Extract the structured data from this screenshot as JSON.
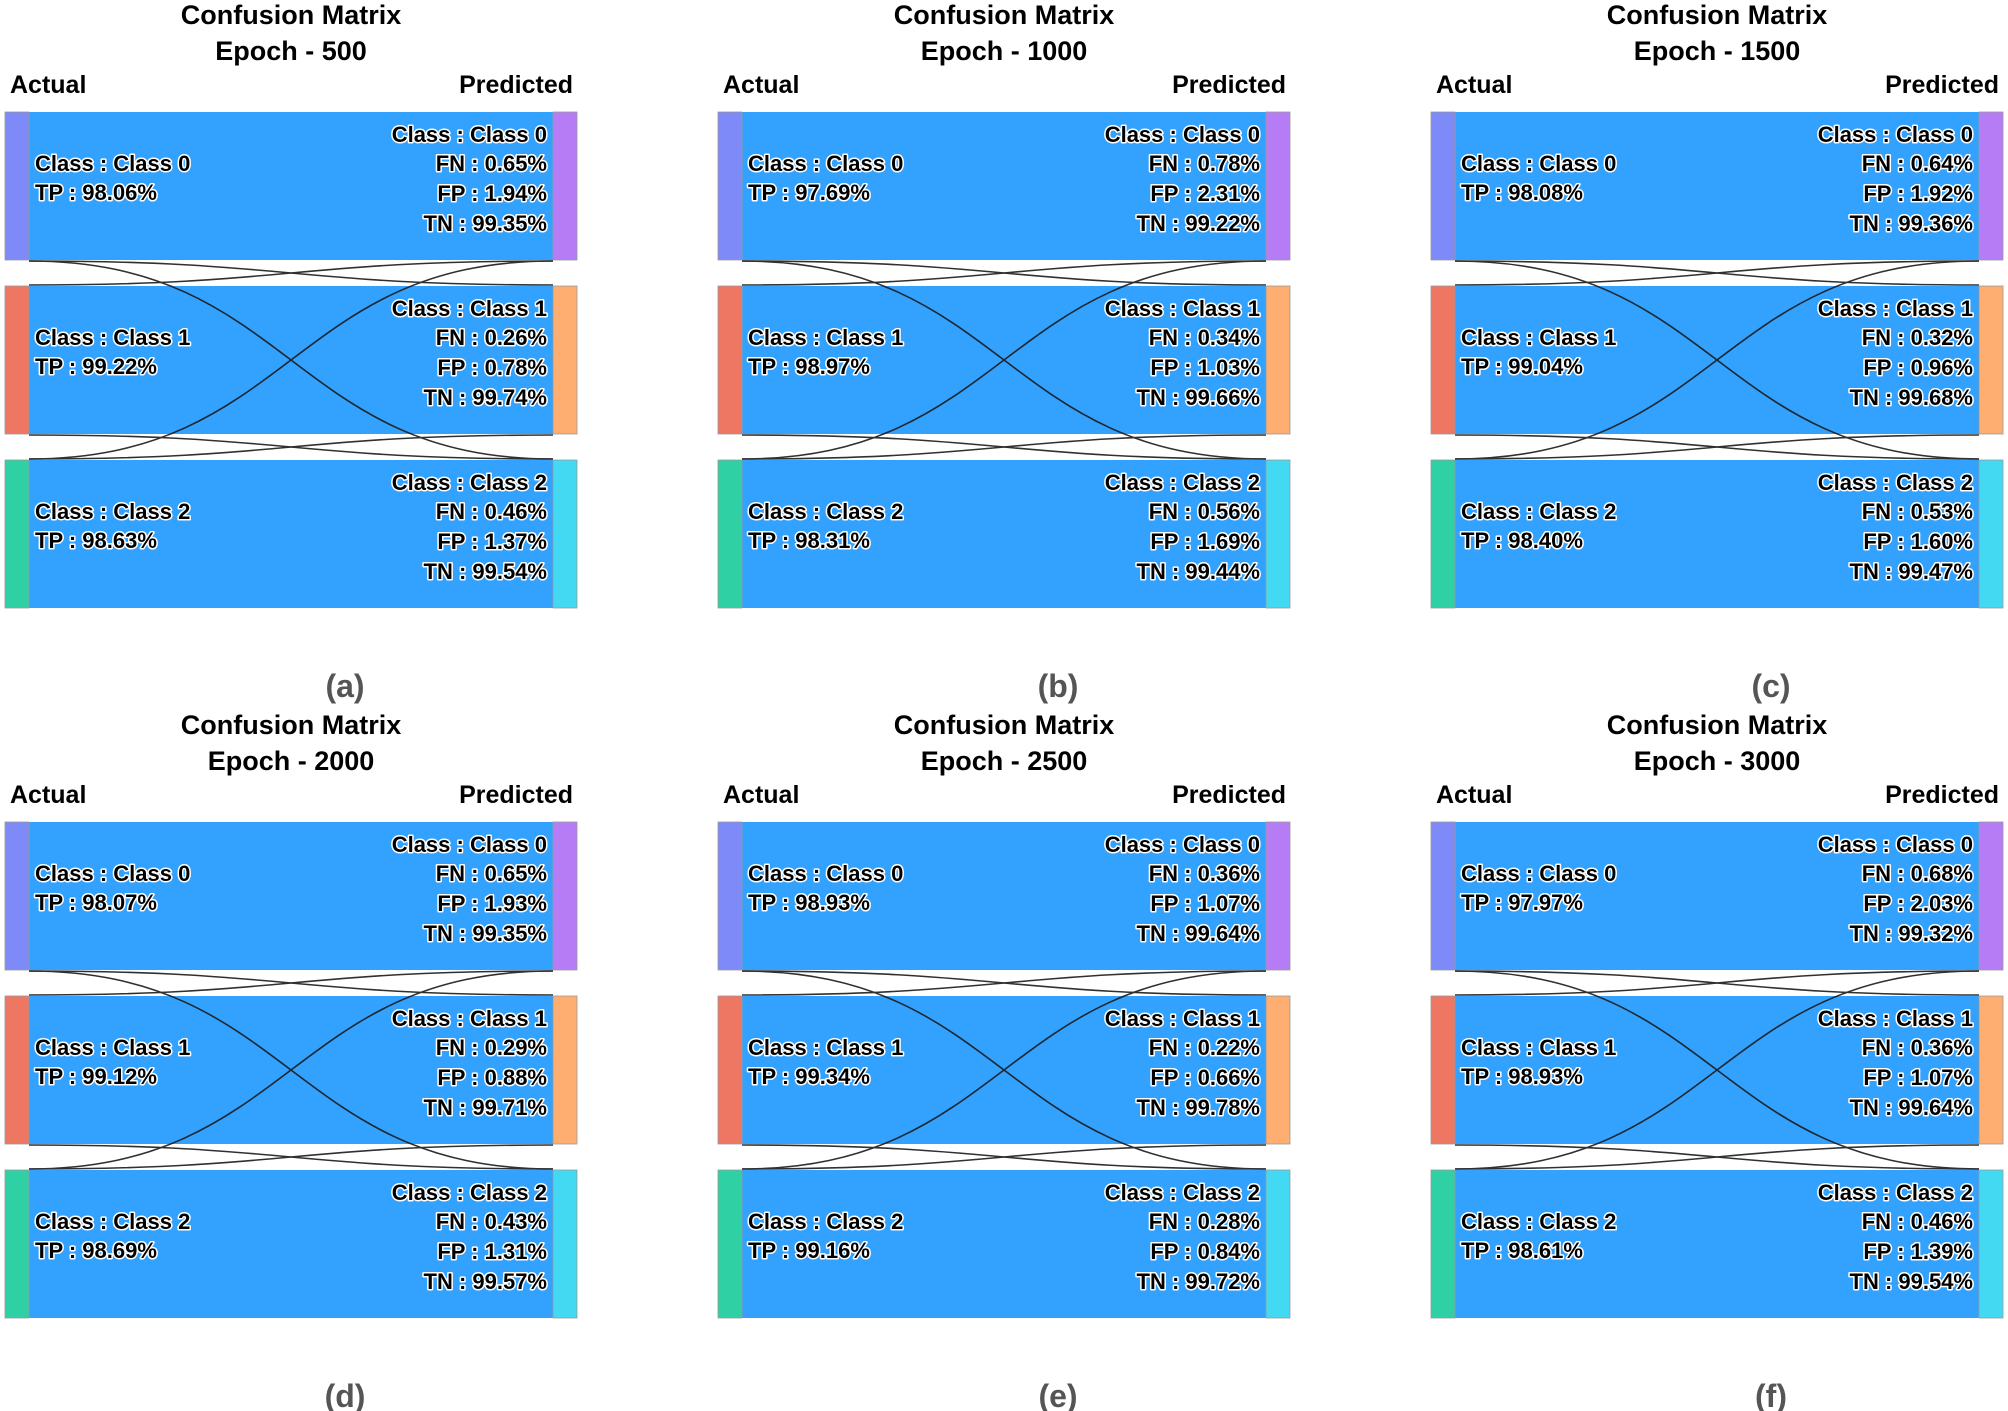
{
  "figure": {
    "title_line1": "Confusion Matrix",
    "actual_label": "Actual",
    "predicted_label": "Predicted",
    "class_prefix": "Class : ",
    "colors": {
      "band": "#33A2FE",
      "link_line": "#1a1a1a",
      "caption": "#555555",
      "actual_nodes": [
        "#7E8AF7",
        "#EE7763",
        "#2FD1A4"
      ],
      "predicted_nodes": [
        "#B57CF5",
        "#FEAE71",
        "#43D9F2"
      ]
    }
  },
  "chart_data": [
    {
      "type": "sankey",
      "title": "Confusion Matrix",
      "subtitle": "Epoch - 500",
      "caption": "(a)",
      "classes": [
        {
          "name": "Class 0",
          "tp": "TP : 98.06%",
          "fn": "FN : 0.65%",
          "fp": "FP : 1.94%",
          "tn": "TN : 99.35%"
        },
        {
          "name": "Class 1",
          "tp": "TP : 99.22%",
          "fn": "FN : 0.26%",
          "fp": "FP : 0.78%",
          "tn": "TN : 99.74%"
        },
        {
          "name": "Class 2",
          "tp": "TP : 98.63%",
          "fn": "FN : 0.46%",
          "fp": "FP : 1.37%",
          "tn": "TN : 99.54%"
        }
      ]
    },
    {
      "type": "sankey",
      "title": "Confusion Matrix",
      "subtitle": "Epoch - 1000",
      "caption": "(b)",
      "classes": [
        {
          "name": "Class 0",
          "tp": "TP : 97.69%",
          "fn": "FN : 0.78%",
          "fp": "FP : 2.31%",
          "tn": "TN : 99.22%"
        },
        {
          "name": "Class 1",
          "tp": "TP : 98.97%",
          "fn": "FN : 0.34%",
          "fp": "FP : 1.03%",
          "tn": "TN : 99.66%"
        },
        {
          "name": "Class 2",
          "tp": "TP : 98.31%",
          "fn": "FN : 0.56%",
          "fp": "FP : 1.69%",
          "tn": "TN : 99.44%"
        }
      ]
    },
    {
      "type": "sankey",
      "title": "Confusion Matrix",
      "subtitle": "Epoch - 1500",
      "caption": "(c)",
      "classes": [
        {
          "name": "Class 0",
          "tp": "TP : 98.08%",
          "fn": "FN : 0.64%",
          "fp": "FP : 1.92%",
          "tn": "TN : 99.36%"
        },
        {
          "name": "Class 1",
          "tp": "TP : 99.04%",
          "fn": "FN : 0.32%",
          "fp": "FP : 0.96%",
          "tn": "TN : 99.68%"
        },
        {
          "name": "Class 2",
          "tp": "TP : 98.40%",
          "fn": "FN : 0.53%",
          "fp": "FP : 1.60%",
          "tn": "TN : 99.47%"
        }
      ]
    },
    {
      "type": "sankey",
      "title": "Confusion Matrix",
      "subtitle": "Epoch - 2000",
      "caption": "(d)",
      "classes": [
        {
          "name": "Class 0",
          "tp": "TP : 98.07%",
          "fn": "FN : 0.65%",
          "fp": "FP : 1.93%",
          "tn": "TN : 99.35%"
        },
        {
          "name": "Class 1",
          "tp": "TP : 99.12%",
          "fn": "FN : 0.29%",
          "fp": "FP : 0.88%",
          "tn": "TN : 99.71%"
        },
        {
          "name": "Class 2",
          "tp": "TP : 98.69%",
          "fn": "FN : 0.43%",
          "fp": "FP : 1.31%",
          "tn": "TN : 99.57%"
        }
      ]
    },
    {
      "type": "sankey",
      "title": "Confusion Matrix",
      "subtitle": "Epoch - 2500",
      "caption": "(e)",
      "classes": [
        {
          "name": "Class 0",
          "tp": "TP : 98.93%",
          "fn": "FN : 0.36%",
          "fp": "FP : 1.07%",
          "tn": "TN : 99.64%"
        },
        {
          "name": "Class 1",
          "tp": "TP : 99.34%",
          "fn": "FN : 0.22%",
          "fp": "FP : 0.66%",
          "tn": "TN : 99.78%"
        },
        {
          "name": "Class 2",
          "tp": "TP : 99.16%",
          "fn": "FN : 0.28%",
          "fp": "FP : 0.84%",
          "tn": "TN : 99.72%"
        }
      ]
    },
    {
      "type": "sankey",
      "title": "Confusion Matrix",
      "subtitle": "Epoch - 3000",
      "caption": "(f)",
      "classes": [
        {
          "name": "Class 0",
          "tp": "TP : 97.97%",
          "fn": "FN : 0.68%",
          "fp": "FP : 2.03%",
          "tn": "TN : 99.32%"
        },
        {
          "name": "Class 1",
          "tp": "TP : 98.93%",
          "fn": "FN : 0.36%",
          "fp": "FP : 1.07%",
          "tn": "TN : 99.64%"
        },
        {
          "name": "Class 2",
          "tp": "TP : 98.61%",
          "fn": "FN : 0.46%",
          "fp": "FP : 1.39%",
          "tn": "TN : 99.54%"
        }
      ]
    }
  ]
}
